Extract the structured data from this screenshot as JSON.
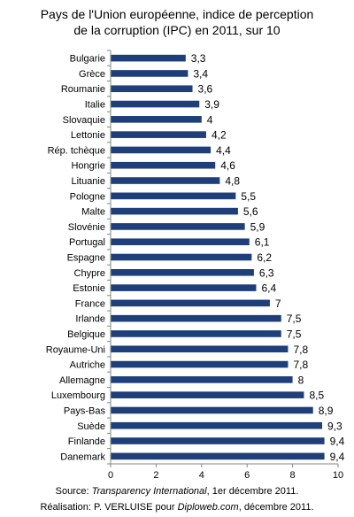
{
  "chart_data": {
    "type": "bar",
    "orientation": "horizontal",
    "title_lines": [
      "Pays de l'Union européenne, indice de perception",
      "de la corruption (IPC) en 2011,  sur 10"
    ],
    "categories": [
      "Bulgarie",
      "Grèce",
      "Roumanie",
      "Italie",
      "Slovaquie",
      "Lettonie",
      "Rép. tchèque",
      "Hongrie",
      "Lituanie",
      "Pologne",
      "Malte",
      "Slovénie",
      "Portugal",
      "Espagne",
      "Chypre",
      "Estonie",
      "France",
      "Irlande",
      "Belgique",
      "Royaume-Uni",
      "Autriche",
      "Allemagne",
      "Luxembourg",
      "Pays-Bas",
      "Suède",
      "Finlande",
      "Danemark"
    ],
    "values": [
      3.3,
      3.4,
      3.6,
      3.9,
      4,
      4.2,
      4.4,
      4.6,
      4.8,
      5.5,
      5.6,
      5.9,
      6.1,
      6.2,
      6.3,
      6.4,
      7,
      7.5,
      7.5,
      7.8,
      7.8,
      8,
      8.5,
      8.9,
      9.3,
      9.4,
      9.4
    ],
    "value_labels": [
      "3,3",
      "3,4",
      "3,6",
      "3,9",
      "4",
      "4,2",
      "4,4",
      "4,6",
      "4,8",
      "5,5",
      "5,6",
      "5,9",
      "6,1",
      "6,2",
      "6,3",
      "6,4",
      "7",
      "7,5",
      "7,5",
      "7,8",
      "7,8",
      "8",
      "8,5",
      "8,9",
      "9,3",
      "9,4",
      "9,4"
    ],
    "xlim": [
      0,
      10
    ],
    "x_ticks": [
      0,
      2,
      4,
      6,
      8,
      10
    ],
    "xlabel": "",
    "ylabel": "",
    "grid": false,
    "legend": "none",
    "bar_color": "#1F3F7A",
    "axis_color": "#868686"
  },
  "footer": {
    "source_prefix": "Source: ",
    "source_name": "Transparency International",
    "source_suffix": ", 1er décembre 2011.",
    "credit_prefix": "Réalisation: P. VERLUISE  pour ",
    "credit_site": "Diploweb.com",
    "credit_suffix": ", décembre 2011."
  }
}
